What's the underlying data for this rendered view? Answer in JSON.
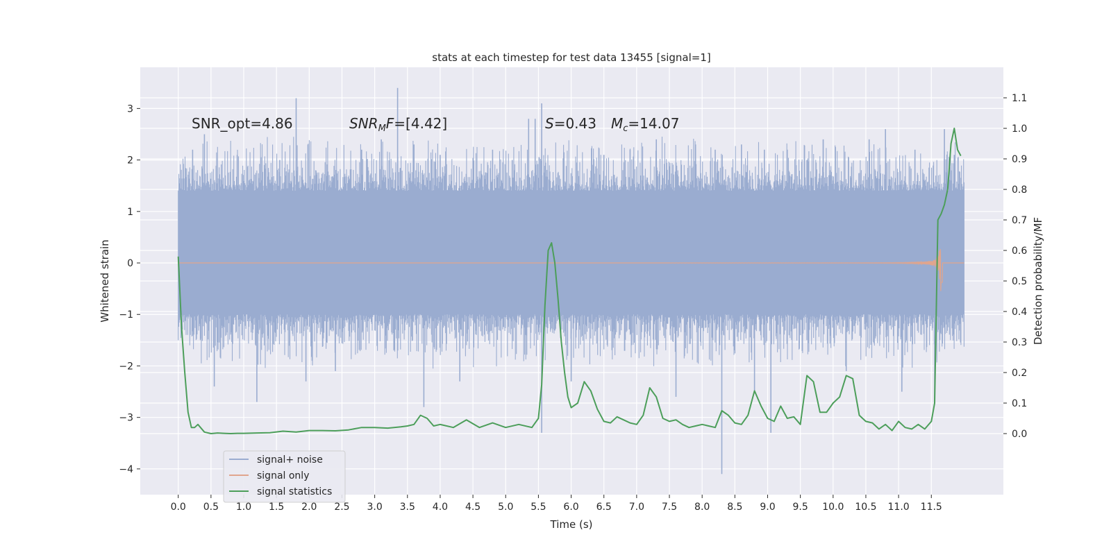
{
  "chart_data": {
    "type": "line",
    "title": "stats at each timestep for test data 13455 [signal=1]",
    "xlabel": "Time (s)",
    "ylabel_left": "Whitened strain",
    "ylabel_right": "Detection probability/MF",
    "xlim": [
      -0.58,
      12.6
    ],
    "ylim_left": [
      -4.5,
      3.8
    ],
    "ylim_right": [
      -0.2,
      1.2
    ],
    "x_ticks": [
      "0.0",
      "0.5",
      "1.0",
      "1.5",
      "2.0",
      "2.5",
      "3.0",
      "3.5",
      "4.0",
      "4.5",
      "5.0",
      "5.5",
      "6.0",
      "6.5",
      "7.0",
      "7.5",
      "8.0",
      "8.5",
      "9.0",
      "9.5",
      "10.0",
      "10.5",
      "11.0",
      "11.5"
    ],
    "y_ticks_left": [
      "3",
      "2",
      "1",
      "0",
      "−1",
      "−2",
      "−3",
      "−4"
    ],
    "y_ticks_right": [
      "1.1",
      "1.0",
      "0.9",
      "0.8",
      "0.7",
      "0.6",
      "0.5",
      "0.4",
      "0.3",
      "0.2",
      "0.1",
      "0.0"
    ],
    "grid": true,
    "legend_placement": "lower-left",
    "annotations": [
      {
        "id": "snr-opt",
        "text": "SNR_opt=4.86"
      },
      {
        "id": "snr-mf",
        "text": "=[4.42]"
      },
      {
        "id": "stat",
        "text": "=0.43"
      },
      {
        "id": "mc",
        "text": "=14.07"
      }
    ],
    "series": [
      {
        "name": "signal+ noise",
        "axis": "left",
        "color": "#9aacd0",
        "x_range": [
          0.0,
          12.0
        ],
        "band": [
          -1.0,
          1.4
        ],
        "spikes": [
          [
            0.22,
            2.2
          ],
          [
            0.4,
            2.5
          ],
          [
            0.55,
            -2.4
          ],
          [
            0.9,
            2.1
          ],
          [
            1.2,
            -2.7
          ],
          [
            1.55,
            2.0
          ],
          [
            1.8,
            3.2
          ],
          [
            1.95,
            -2.3
          ],
          [
            2.4,
            -2.1
          ],
          [
            2.8,
            2.2
          ],
          [
            3.1,
            2.4
          ],
          [
            3.35,
            3.4
          ],
          [
            3.6,
            2.3
          ],
          [
            3.75,
            -2.8
          ],
          [
            4.0,
            2.1
          ],
          [
            4.3,
            -2.3
          ],
          [
            4.8,
            2.2
          ],
          [
            5.1,
            2.0
          ],
          [
            5.35,
            2.8
          ],
          [
            5.45,
            2.8
          ],
          [
            5.55,
            3.1
          ],
          [
            5.55,
            -3.3
          ],
          [
            6.0,
            -2.3
          ],
          [
            6.5,
            2.1
          ],
          [
            6.9,
            2.2
          ],
          [
            7.3,
            2.4
          ],
          [
            7.6,
            -2.6
          ],
          [
            7.9,
            2.3
          ],
          [
            8.2,
            2.2
          ],
          [
            8.3,
            -4.1
          ],
          [
            8.6,
            2.3
          ],
          [
            8.8,
            -2.5
          ],
          [
            8.95,
            2.2
          ],
          [
            9.05,
            -3.3
          ],
          [
            9.3,
            2.2
          ],
          [
            9.6,
            2.0
          ],
          [
            9.85,
            2.4
          ],
          [
            10.2,
            -2.1
          ],
          [
            10.55,
            2.4
          ],
          [
            10.8,
            2.6
          ],
          [
            11.05,
            -2.5
          ],
          [
            11.25,
            2.2
          ],
          [
            11.55,
            -2.7
          ],
          [
            11.7,
            2.6
          ],
          [
            11.85,
            2.1
          ]
        ]
      },
      {
        "name": "signal only",
        "axis": "left",
        "color": "#e0a58d",
        "x_range": [
          0.0,
          12.0
        ],
        "chirp_start": 7.5,
        "merger_time": 11.65,
        "peak_amplitude": [
          0.55,
          -0.6
        ]
      },
      {
        "name": "signal statistics",
        "axis": "right",
        "color": "#4c9e5a",
        "x": [
          0.0,
          0.05,
          0.1,
          0.15,
          0.2,
          0.25,
          0.3,
          0.4,
          0.5,
          0.6,
          0.7,
          0.8,
          0.9,
          1.0,
          1.2,
          1.4,
          1.6,
          1.8,
          2.0,
          2.2,
          2.4,
          2.6,
          2.8,
          3.0,
          3.2,
          3.4,
          3.5,
          3.6,
          3.7,
          3.8,
          3.9,
          4.0,
          4.2,
          4.4,
          4.6,
          4.8,
          5.0,
          5.2,
          5.4,
          5.5,
          5.55,
          5.6,
          5.65,
          5.7,
          5.75,
          5.8,
          5.85,
          5.9,
          5.95,
          6.0,
          6.1,
          6.2,
          6.3,
          6.4,
          6.5,
          6.6,
          6.7,
          6.8,
          6.9,
          7.0,
          7.1,
          7.2,
          7.3,
          7.4,
          7.5,
          7.6,
          7.7,
          7.8,
          7.9,
          8.0,
          8.1,
          8.2,
          8.3,
          8.4,
          8.5,
          8.6,
          8.7,
          8.8,
          8.9,
          9.0,
          9.1,
          9.2,
          9.3,
          9.4,
          9.5,
          9.6,
          9.7,
          9.8,
          9.9,
          10.0,
          10.1,
          10.2,
          10.3,
          10.4,
          10.5,
          10.6,
          10.7,
          10.8,
          10.9,
          11.0,
          11.1,
          11.2,
          11.3,
          11.4,
          11.5,
          11.55,
          11.6,
          11.65,
          11.7,
          11.75,
          11.8,
          11.85,
          11.9,
          11.95
        ],
        "values": [
          0.58,
          0.35,
          0.2,
          0.07,
          0.02,
          0.02,
          0.03,
          0.005,
          0.0,
          0.002,
          0.001,
          0.0,
          0.001,
          0.001,
          0.002,
          0.003,
          0.008,
          0.005,
          0.01,
          0.01,
          0.009,
          0.012,
          0.02,
          0.02,
          0.018,
          0.022,
          0.025,
          0.03,
          0.06,
          0.05,
          0.025,
          0.03,
          0.02,
          0.045,
          0.02,
          0.035,
          0.02,
          0.03,
          0.02,
          0.05,
          0.16,
          0.42,
          0.6,
          0.625,
          0.56,
          0.44,
          0.3,
          0.2,
          0.12,
          0.085,
          0.1,
          0.17,
          0.14,
          0.08,
          0.04,
          0.035,
          0.055,
          0.045,
          0.035,
          0.03,
          0.06,
          0.15,
          0.12,
          0.05,
          0.04,
          0.045,
          0.03,
          0.02,
          0.025,
          0.03,
          0.025,
          0.02,
          0.075,
          0.06,
          0.035,
          0.03,
          0.06,
          0.14,
          0.09,
          0.05,
          0.04,
          0.09,
          0.05,
          0.055,
          0.03,
          0.19,
          0.17,
          0.07,
          0.07,
          0.1,
          0.12,
          0.19,
          0.18,
          0.06,
          0.04,
          0.035,
          0.015,
          0.03,
          0.01,
          0.04,
          0.02,
          0.015,
          0.03,
          0.015,
          0.04,
          0.1,
          0.7,
          0.72,
          0.75,
          0.8,
          0.95,
          1.0,
          0.93,
          0.91
        ]
      }
    ]
  }
}
